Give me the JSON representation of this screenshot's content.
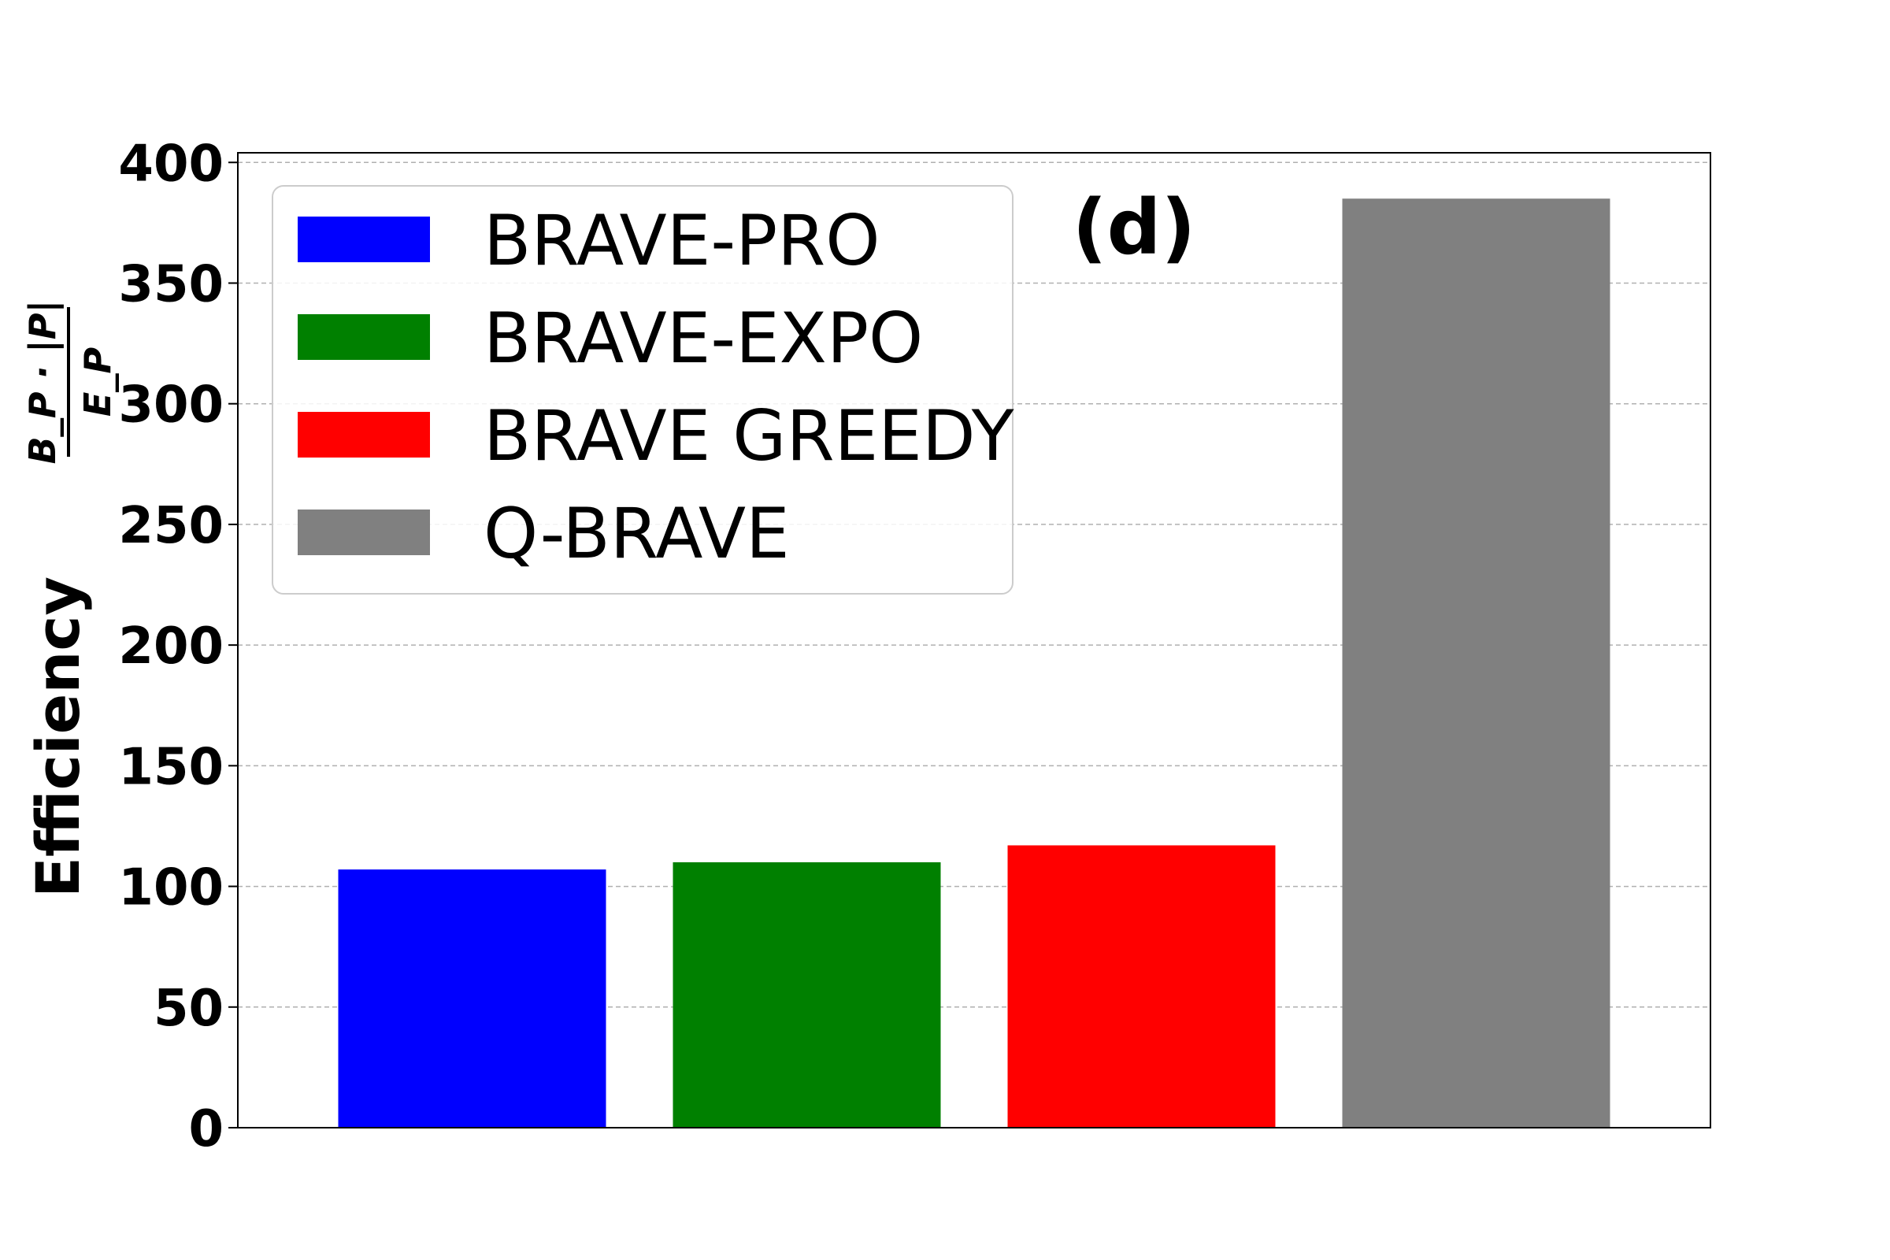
{
  "chart_data": {
    "type": "bar",
    "title": "",
    "annotation": "(d)",
    "xlabel": "",
    "ylabel": {
      "text": "Efficiency",
      "formula_numerator": "B_P · |P|",
      "formula_denominator": "E_P"
    },
    "categories": [
      "BRAVE-PRO",
      "BRAVE-EXPO",
      "BRAVE GREEDY",
      "Q-BRAVE"
    ],
    "values": [
      107,
      110,
      117,
      385
    ],
    "colors": [
      "#0000ff",
      "#008000",
      "#ff0000",
      "#808080"
    ],
    "ylim": [
      0,
      404
    ],
    "yticks": [
      0,
      50,
      100,
      150,
      200,
      250,
      300,
      350,
      400
    ],
    "grid": "horizontal dashed",
    "legend": {
      "position": "top-left",
      "entries": [
        "BRAVE-PRO",
        "BRAVE-EXPO",
        "BRAVE GREEDY",
        "Q-BRAVE"
      ]
    }
  }
}
